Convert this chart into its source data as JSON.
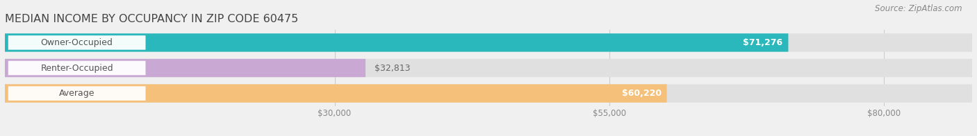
{
  "title": "MEDIAN INCOME BY OCCUPANCY IN ZIP CODE 60475",
  "source": "Source: ZipAtlas.com",
  "categories": [
    "Owner-Occupied",
    "Renter-Occupied",
    "Average"
  ],
  "values": [
    71276,
    32813,
    60220
  ],
  "bar_colors": [
    "#2ab8bc",
    "#c9a8d4",
    "#f5c07a"
  ],
  "value_labels": [
    "$71,276",
    "$32,813",
    "$60,220"
  ],
  "value_inside": [
    true,
    false,
    true
  ],
  "x_ticks": [
    30000,
    55000,
    80000
  ],
  "x_tick_labels": [
    "$30,000",
    "$55,000",
    "$80,000"
  ],
  "xlim": [
    0,
    88000
  ],
  "background_color": "#f0f0f0",
  "bar_bg_color": "#e0e0e0",
  "title_fontsize": 11.5,
  "source_fontsize": 8.5,
  "label_fontsize": 9,
  "value_fontsize": 9
}
